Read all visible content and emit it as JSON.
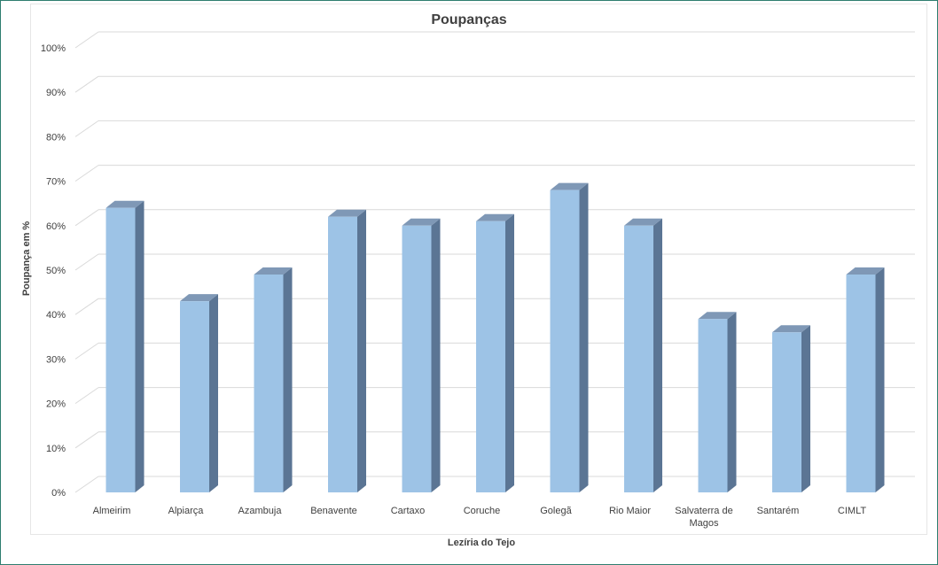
{
  "chart_data": {
    "type": "bar",
    "title": "Poupanças",
    "xlabel": "Lezíria do Tejo",
    "ylabel": "Poupança em %",
    "categories": [
      "Almeirim",
      "Alpiarça",
      "Azambuja",
      "Benavente",
      "Cartaxo",
      "Coruche",
      "Golegã",
      "Rio Maior",
      "Salvaterra de Magos",
      "Santarém",
      "CIMLT"
    ],
    "category_lines": [
      [
        "Almeirim"
      ],
      [
        "Alpiarça"
      ],
      [
        "Azambuja"
      ],
      [
        "Benavente"
      ],
      [
        "Cartaxo"
      ],
      [
        "Coruche"
      ],
      [
        "Golegã"
      ],
      [
        "Rio Maior"
      ],
      [
        "Salvaterra de",
        "Magos"
      ],
      [
        "Santarém"
      ],
      [
        "CIMLT"
      ]
    ],
    "values": [
      64,
      43,
      49,
      62,
      60,
      61,
      68,
      60,
      39,
      36,
      49
    ],
    "ylim": [
      0,
      100
    ],
    "yticks": [
      0,
      10,
      20,
      30,
      40,
      50,
      60,
      70,
      80,
      90,
      100
    ],
    "ytick_labels": [
      "0%",
      "10%",
      "20%",
      "30%",
      "40%",
      "50%",
      "60%",
      "70%",
      "80%",
      "90%",
      "100%"
    ],
    "grid": true,
    "legend": "none",
    "colors": {
      "bar_front": "#9dc3e6",
      "bar_side": "#5b7594",
      "bar_top": "#7f98b6",
      "gridline": "#d9d9d9",
      "text": "#404040",
      "title": "#404040"
    }
  }
}
